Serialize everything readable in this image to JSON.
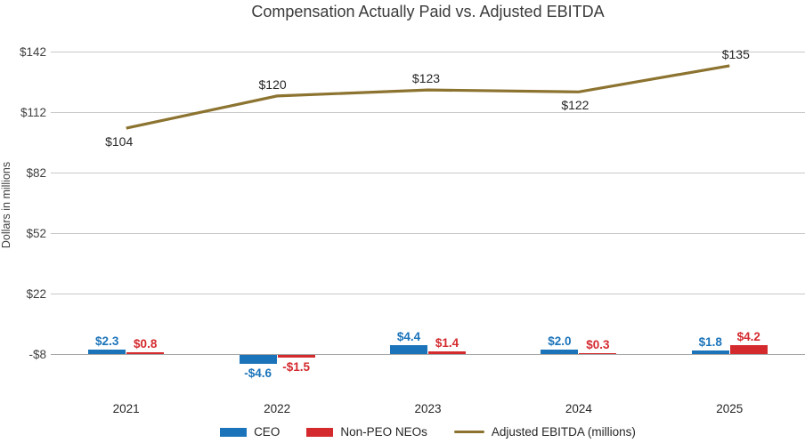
{
  "chart_data": {
    "type": "combo",
    "title": "Compensation Actually Paid vs. Adjusted EBITDA",
    "ylabel": "Dollars in millions",
    "categories": [
      "2021",
      "2022",
      "2023",
      "2024",
      "2025"
    ],
    "yticks": [
      142,
      112,
      82,
      52,
      22,
      -8
    ],
    "ytick_labels": [
      "$142",
      "$112",
      "$82",
      "$52",
      "$22",
      "-$8"
    ],
    "ylim": [
      -8,
      142
    ],
    "grid": true,
    "legend_position": "bottom",
    "series": [
      {
        "name": "CEO",
        "type": "bar",
        "color": "#1B74BA",
        "values": [
          2.3,
          -4.6,
          4.4,
          2.0,
          1.8
        ],
        "labels": [
          "$2.3",
          "-$4.6",
          "$4.4",
          "$2.0",
          "$1.8"
        ]
      },
      {
        "name": "Non-PEO NEOs",
        "type": "bar",
        "color": "#D42A2E",
        "values": [
          0.8,
          -1.5,
          1.4,
          0.3,
          4.2
        ],
        "labels": [
          "$0.8",
          "-$1.5",
          "$1.4",
          "$0.3",
          "$4.2"
        ]
      },
      {
        "name": "Adjusted EBITDA (millions)",
        "type": "line",
        "color": "#8C7330",
        "values": [
          104,
          120,
          123,
          122,
          135
        ],
        "labels": [
          "$104",
          "$120",
          "$123",
          "$122",
          "$135"
        ],
        "label_placement": [
          "below",
          "above",
          "above",
          "below",
          "above"
        ],
        "label_dx": [
          -8,
          -5,
          -2,
          -4,
          7
        ]
      }
    ]
  },
  "colors": {
    "background": "#FFFFFF",
    "gridline": "#C9C9C9",
    "axis_line": "#A6A6A6",
    "title_text": "#3A3A3A",
    "axis_text": "#3F3F3F",
    "label_text": "#262626"
  }
}
